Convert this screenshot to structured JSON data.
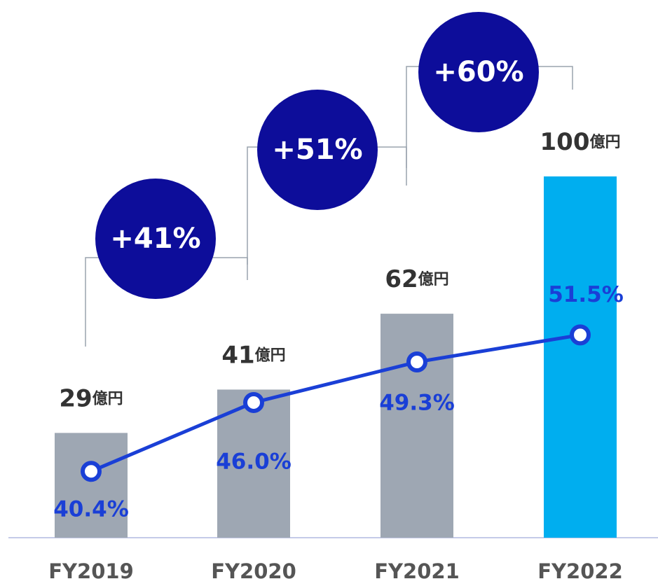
{
  "chart_data": {
    "type": "bar_line",
    "categories": [
      "FY2019",
      "FY2020",
      "FY2021",
      "FY2022"
    ],
    "series": [
      {
        "type": "bar",
        "colors": [
          "#9ea7b3",
          "#9ea7b3",
          "#9ea7b3",
          "#00aeef"
        ],
        "values": [
          29,
          41,
          62,
          100
        ],
        "unit": "億円"
      },
      {
        "type": "line",
        "axis": "y2",
        "color": "#1a3fd6",
        "values": [
          40.4,
          46.0,
          49.3,
          51.5
        ],
        "value_labels": [
          "40.4%",
          "46.0%",
          "49.3%",
          "51.5%"
        ]
      }
    ],
    "ylim": [
      0,
      100
    ],
    "y2lim": [
      35,
      64.4
    ],
    "annotations": [
      "+41%",
      "+51%",
      "+60%"
    ],
    "annotation_color": "#0d0d9a"
  }
}
